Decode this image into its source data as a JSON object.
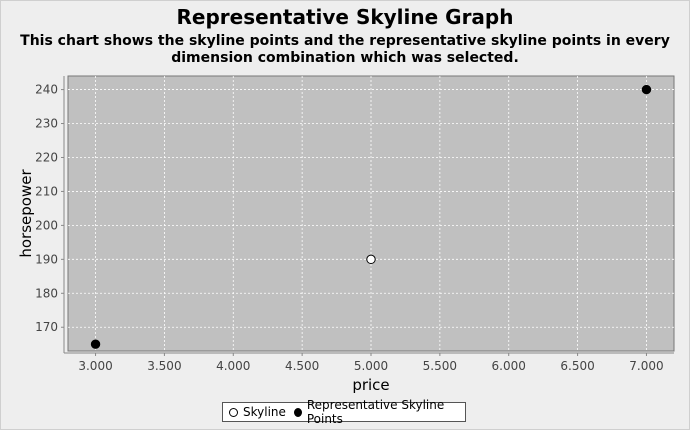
{
  "chart_data": {
    "type": "scatter",
    "title": "Representative Skyline Graph",
    "subtitle": "This chart shows the skyline points and the representative skyline points in every dimension combination which was selected.",
    "xlabel": "price",
    "ylabel": "horsepower",
    "xlim": [
      2800,
      7200
    ],
    "ylim": [
      163,
      244
    ],
    "x_ticks": [
      3000,
      3500,
      4000,
      4500,
      5000,
      5500,
      6000,
      6500,
      7000
    ],
    "x_tick_labels": [
      "3.000",
      "3.500",
      "4.000",
      "4.500",
      "5.000",
      "5.500",
      "6.000",
      "6.500",
      "7.000"
    ],
    "y_ticks": [
      170,
      180,
      190,
      200,
      210,
      220,
      230,
      240
    ],
    "y_tick_labels": [
      "170",
      "180",
      "190",
      "200",
      "210",
      "220",
      "230",
      "240"
    ],
    "grid": true,
    "legend_position": "bottom",
    "series": [
      {
        "name": "Skyline",
        "marker": "open-circle",
        "color": "#ffffff",
        "points": [
          {
            "x": 5000,
            "y": 190
          }
        ]
      },
      {
        "name": "Representative Skyline Points",
        "marker": "filled-circle",
        "color": "#000000",
        "points": [
          {
            "x": 3000,
            "y": 165
          },
          {
            "x": 7000,
            "y": 240
          }
        ]
      }
    ],
    "colors": {
      "plot_background": "#c0c0c0",
      "page_background": "#eeeeee",
      "gridline": "#ffffff"
    }
  }
}
